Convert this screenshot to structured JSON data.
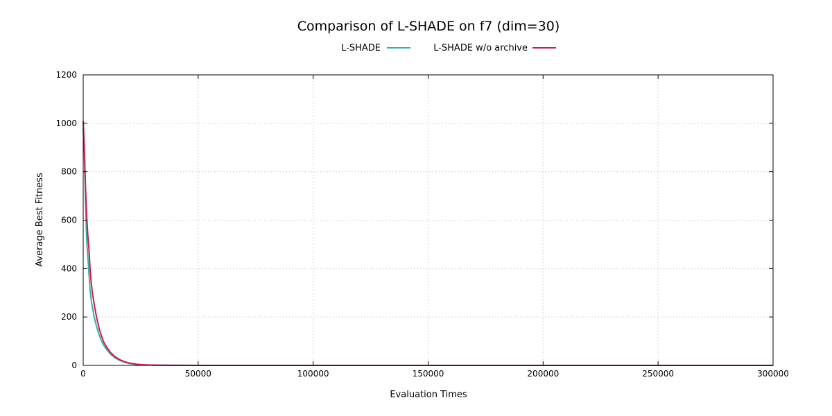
{
  "chart_data": {
    "type": "line",
    "title": "Comparison of L-SHADE on f7 (dim=30)",
    "xlabel": "Evaluation Times",
    "ylabel": "Average Best Fitness",
    "xlim": [
      0,
      300000
    ],
    "ylim": [
      0,
      1200
    ],
    "xticks": [
      0,
      50000,
      100000,
      150000,
      200000,
      250000,
      300000
    ],
    "yticks": [
      0,
      200,
      400,
      600,
      800,
      1000,
      1200
    ],
    "grid": true,
    "legend_position": "top-center",
    "series": [
      {
        "name": "L-SHADE",
        "color": "#2bb5a8",
        "x": [
          0,
          500,
          1000,
          1500,
          2000,
          2500,
          3000,
          3500,
          4000,
          5000,
          6000,
          7000,
          8000,
          9000,
          10000,
          12000,
          14000,
          16000,
          18000,
          20000,
          23000,
          26000,
          30000,
          35000,
          40000,
          50000,
          70000,
          100000,
          150000,
          200000,
          250000,
          300000
        ],
        "y": [
          980,
          870,
          680,
          520,
          450,
          380,
          310,
          270,
          240,
          190,
          155,
          125,
          100,
          82,
          68,
          45,
          30,
          20,
          13,
          8,
          4,
          2,
          1,
          0.5,
          0.2,
          0.05,
          0.01,
          0,
          0,
          0,
          0,
          0
        ]
      },
      {
        "name": "L-SHADE w/o archive",
        "color": "#d6194b",
        "x": [
          0,
          500,
          1000,
          1500,
          2000,
          2500,
          3000,
          3500,
          4000,
          5000,
          6000,
          7000,
          8000,
          9000,
          10000,
          12000,
          14000,
          16000,
          18000,
          20000,
          23000,
          26000,
          30000,
          35000,
          40000,
          50000,
          70000,
          100000,
          150000,
          200000,
          250000,
          300000
        ],
        "y": [
          1010,
          900,
          740,
          620,
          540,
          480,
          400,
          340,
          300,
          240,
          190,
          150,
          120,
          95,
          78,
          52,
          35,
          23,
          15,
          10,
          5,
          2.5,
          1.2,
          0.6,
          0.3,
          0.06,
          0.01,
          0,
          0,
          0,
          0,
          0
        ]
      }
    ]
  }
}
